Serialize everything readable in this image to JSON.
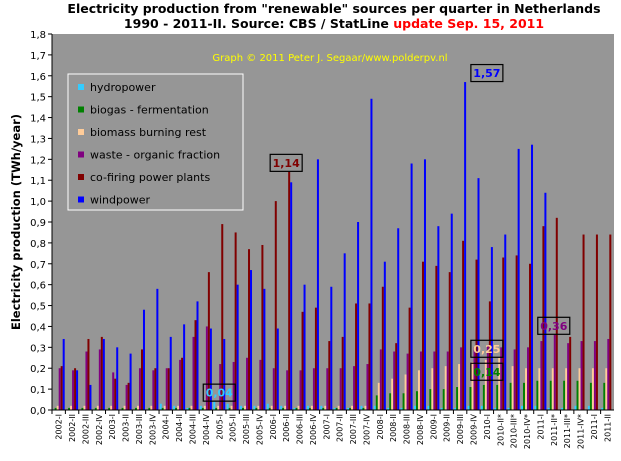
{
  "title": {
    "line1": "Electricity production from \"renewable\" sources per quarter in Netherlands",
    "line2_black": "1990 - 2011-II. Source: CBS / StatLine ",
    "line2_red": "update Sep. 15, 2011"
  },
  "credit": "Graph © 2011 Peter J. Segaar/www.polderpv.nl",
  "colors": {
    "plot_bg": "#969696",
    "title_red": "#ff0000",
    "credit": "#ffff00",
    "hydropower": "#33ccff",
    "biogas": "#008000",
    "biomass": "#ffcc99",
    "waste": "#800080",
    "cofiring": "#800000",
    "windpower": "#0000ff"
  },
  "chart_data": {
    "type": "bar",
    "ylabel": "Electricity production (TWh/year)",
    "ylim": [
      0,
      1.8
    ],
    "yticks": [
      "0,0",
      "0,1",
      "0,2",
      "0,3",
      "0,4",
      "0,5",
      "0,6",
      "0,7",
      "0,8",
      "0,9",
      "1,0",
      "1,1",
      "1,2",
      "1,3",
      "1,4",
      "1,5",
      "1,6",
      "1,7",
      "1,8"
    ],
    "grid": false,
    "legend_position": "top-left",
    "categories": [
      "2002-I",
      "2002-II",
      "2002-III",
      "2002-IV",
      "2003-I",
      "2003-II",
      "2003-III",
      "2003-IV",
      "2004-I",
      "2004-II",
      "2004-III",
      "2004-IV",
      "2005-I",
      "2005-II",
      "2005-III",
      "2005-IV",
      "2006-I",
      "2006-II",
      "2006-III",
      "2006-IV",
      "2007-I",
      "2007-II",
      "2007-III",
      "2007-IV",
      "2008-I",
      "2008-II",
      "2008-III",
      "2008-IV",
      "2009-I",
      "2009-II",
      "2009-III",
      "2009-IV",
      "2010-I",
      "2010-II*",
      "2010-III*",
      "2010-IV*",
      "2011-I",
      "2011-II*",
      "2011-III*",
      "2011-IV*",
      "2011-I",
      "2011-II"
    ],
    "series": [
      {
        "name": "hydropower",
        "color_key": "hydropower",
        "values": [
          0.003,
          0.002,
          0.002,
          0.003,
          0.002,
          0.002,
          0.002,
          0.003,
          0.03,
          0.02,
          0.01,
          0.02,
          0.04,
          0.03,
          0.02,
          0.02,
          0.03,
          0.02,
          0.01,
          0.02,
          0.02,
          0.01,
          0.01,
          0.02,
          0.02,
          0.01,
          0.01,
          0.02,
          0.02,
          0.01,
          0.01,
          0.02,
          0.02,
          0.01,
          0.01,
          0.02,
          0.02,
          0.01,
          0.01,
          0.02,
          0.02,
          0.01
        ]
      },
      {
        "name": "biogas - fermentation",
        "color_key": "biogas",
        "values": [
          0.01,
          0.01,
          0.01,
          0.01,
          0.01,
          0.01,
          0.01,
          0.01,
          0.01,
          0.01,
          0.01,
          0.01,
          0.01,
          0.01,
          0.01,
          0.01,
          0.01,
          0.01,
          0.01,
          0.01,
          0.01,
          0.01,
          0.01,
          0.01,
          0.07,
          0.08,
          0.08,
          0.09,
          0.1,
          0.1,
          0.11,
          0.11,
          0.12,
          0.12,
          0.13,
          0.13,
          0.14,
          0.14,
          0.14,
          0.14,
          0.13,
          0.13
        ]
      },
      {
        "name": "biomass burning rest",
        "color_key": "biomass",
        "values": [
          0.02,
          0.02,
          0.02,
          0.02,
          0.02,
          0.02,
          0.02,
          0.02,
          0.02,
          0.02,
          0.02,
          0.02,
          0.02,
          0.02,
          0.02,
          0.02,
          0.02,
          0.02,
          0.02,
          0.02,
          0.02,
          0.02,
          0.02,
          0.02,
          0.13,
          0.15,
          0.17,
          0.19,
          0.2,
          0.21,
          0.22,
          0.23,
          0.24,
          0.25,
          0.21,
          0.2,
          0.2,
          0.2,
          0.2,
          0.2,
          0.2,
          0.2
        ]
      },
      {
        "name": "waste - organic fraction",
        "color_key": "waste",
        "values": [
          0.2,
          0.19,
          0.28,
          0.29,
          0.18,
          0.12,
          0.2,
          0.19,
          0.2,
          0.24,
          0.35,
          0.4,
          0.22,
          0.23,
          0.25,
          0.24,
          0.2,
          0.19,
          0.19,
          0.2,
          0.2,
          0.2,
          0.21,
          0.22,
          0.29,
          0.28,
          0.27,
          0.28,
          0.28,
          0.28,
          0.3,
          0.3,
          0.31,
          0.3,
          0.29,
          0.3,
          0.33,
          0.36,
          0.32,
          0.33,
          0.33,
          0.34
        ]
      },
      {
        "name": "co-firing power plants",
        "color_key": "cofiring",
        "values": [
          0.21,
          0.2,
          0.34,
          0.35,
          0.15,
          0.13,
          0.29,
          0.2,
          0.2,
          0.25,
          0.43,
          0.66,
          0.89,
          0.85,
          0.77,
          0.79,
          1.0,
          1.14,
          0.47,
          0.49,
          0.33,
          0.35,
          0.51,
          0.51,
          0.59,
          0.32,
          0.49,
          0.71,
          0.69,
          0.66,
          0.81,
          0.72,
          0.52,
          0.73,
          0.74,
          0.7,
          0.88,
          0.92,
          0.35,
          0.84,
          0.84,
          0.84
        ]
      },
      {
        "name": "windpower",
        "color_key": "windpower",
        "values": [
          0.34,
          0.19,
          0.12,
          0.34,
          0.3,
          0.27,
          0.48,
          0.58,
          0.35,
          0.41,
          0.52,
          0.39,
          0.34,
          0.6,
          0.67,
          0.58,
          0.39,
          1.09,
          0.6,
          1.2,
          0.59,
          0.75,
          0.9,
          1.49,
          0.71,
          0.87,
          1.18,
          1.2,
          0.88,
          0.94,
          1.57,
          1.11,
          0.78,
          0.84,
          1.25,
          1.27,
          1.04,
          0.0,
          0.0,
          0.0,
          0.0,
          0.0
        ]
      }
    ],
    "annotations": [
      {
        "text": "1,14",
        "color": "#800000",
        "at_category": "2006-II",
        "y": 1.14
      },
      {
        "text": "1,57",
        "color": "#0000ff",
        "at_category": "2010-I",
        "y": 1.57
      },
      {
        "text": "0,36",
        "color": "#800080",
        "at_category": "2011-II*",
        "y": 0.36
      },
      {
        "text": "0,25",
        "color": "#ffcc99",
        "at_category": "2010-I",
        "y": 0.25
      },
      {
        "text": "0,14",
        "color": "#008000",
        "at_category": "2010-I",
        "y": 0.14
      },
      {
        "text": "0,04",
        "color": "#33ccff",
        "at_category": "2005-I",
        "y": 0.04
      }
    ]
  }
}
